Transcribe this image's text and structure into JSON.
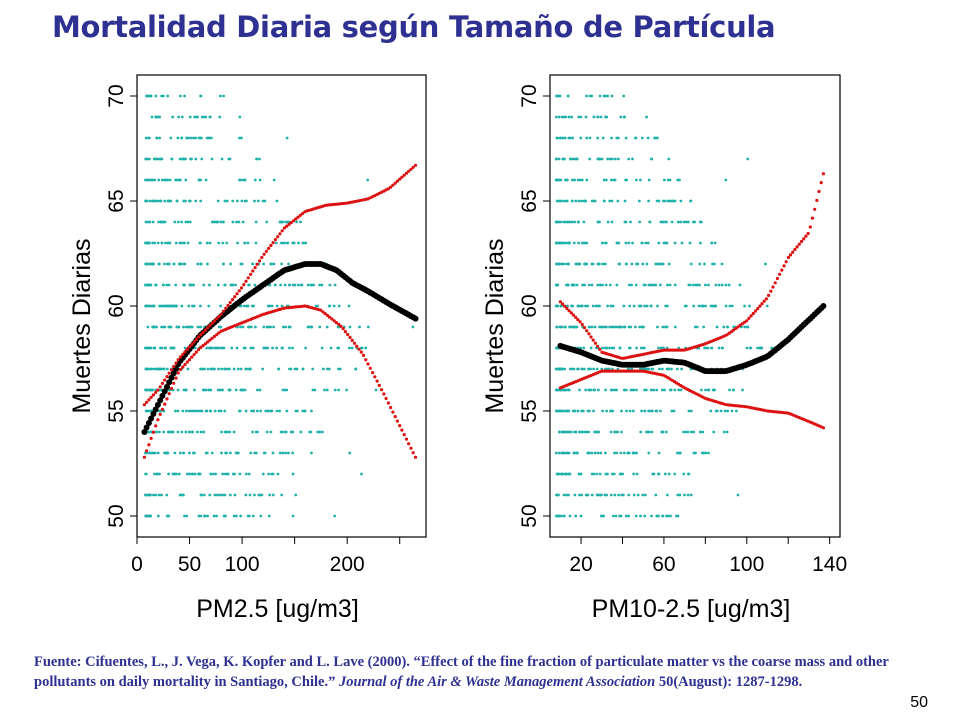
{
  "title": "Mortalidad Diaria según Tamaño de Partícula",
  "colors": {
    "title": "#2E3192",
    "points": "#20B2AA",
    "fit": "#000000",
    "ci": "#DD1111"
  },
  "chart_data": [
    {
      "type": "scatter",
      "xlabel": "PM2.5 [ug/m3]",
      "ylabel": "Muertes Diarias",
      "xlim": [
        0,
        275
      ],
      "ylim": [
        49,
        71
      ],
      "xticks": [
        0,
        50,
        100,
        150,
        200,
        250
      ],
      "xtick_labels": [
        "0",
        "50",
        "100",
        "",
        "200",
        ""
      ],
      "yticks": [
        50,
        55,
        60,
        65,
        70
      ],
      "scatter_x_range": [
        8,
        265
      ],
      "scatter_y_range": [
        50,
        70
      ],
      "series": [
        {
          "values": [
            [
              7,
              54.0
            ],
            [
              20,
              55.3
            ],
            [
              40,
              57.3
            ],
            [
              60,
              58.6
            ],
            [
              80,
              59.5
            ],
            [
              100,
              60.3
            ],
            [
              120,
              61.0
            ],
            [
              140,
              61.7
            ],
            [
              160,
              62.0
            ],
            [
              175,
              62.0
            ],
            [
              190,
              61.7
            ],
            [
              205,
              61.1
            ],
            [
              220,
              60.7
            ],
            [
              240,
              60.1
            ],
            [
              265,
              59.4
            ]
          ]
        },
        {
          "values": [
            [
              7,
              55.3
            ],
            [
              20,
              56.0
            ],
            [
              40,
              57.5
            ],
            [
              60,
              58.6
            ],
            [
              80,
              59.6
            ],
            [
              100,
              60.9
            ],
            [
              120,
              62.4
            ],
            [
              140,
              63.7
            ],
            [
              160,
              64.5
            ],
            [
              180,
              64.8
            ],
            [
              200,
              64.9
            ],
            [
              220,
              65.1
            ],
            [
              240,
              65.6
            ],
            [
              265,
              66.7
            ]
          ]
        },
        {
          "values": [
            [
              7,
              52.8
            ],
            [
              20,
              54.6
            ],
            [
              40,
              56.9
            ],
            [
              60,
              58.0
            ],
            [
              80,
              58.8
            ],
            [
              100,
              59.2
            ],
            [
              120,
              59.6
            ],
            [
              140,
              59.9
            ],
            [
              160,
              60.0
            ],
            [
              175,
              59.8
            ],
            [
              195,
              59.0
            ],
            [
              215,
              57.7
            ],
            [
              235,
              55.8
            ],
            [
              250,
              54.3
            ],
            [
              265,
              52.8
            ]
          ]
        }
      ]
    },
    {
      "type": "scatter",
      "xlabel": "PM10-2.5 [ug/m3]",
      "ylabel": "Muertes Diarias",
      "xlim": [
        5,
        145
      ],
      "ylim": [
        49,
        71
      ],
      "xticks": [
        20,
        40,
        60,
        80,
        100,
        120,
        140
      ],
      "xtick_labels": [
        "20",
        "",
        "60",
        "",
        "100",
        "",
        "140"
      ],
      "yticks": [
        50,
        55,
        60,
        65,
        70
      ],
      "scatter_x_range": [
        8,
        132
      ],
      "scatter_y_range": [
        50,
        70
      ],
      "series": [
        {
          "values": [
            [
              10,
              58.1
            ],
            [
              20,
              57.8
            ],
            [
              30,
              57.4
            ],
            [
              40,
              57.2
            ],
            [
              50,
              57.2
            ],
            [
              60,
              57.4
            ],
            [
              70,
              57.3
            ],
            [
              80,
              56.9
            ],
            [
              90,
              56.9
            ],
            [
              100,
              57.2
            ],
            [
              110,
              57.6
            ],
            [
              120,
              58.4
            ],
            [
              137,
              60.0
            ]
          ]
        },
        {
          "values": [
            [
              10,
              60.2
            ],
            [
              20,
              59.2
            ],
            [
              30,
              57.8
            ],
            [
              40,
              57.5
            ],
            [
              50,
              57.7
            ],
            [
              60,
              57.9
            ],
            [
              70,
              57.9
            ],
            [
              80,
              58.2
            ],
            [
              90,
              58.6
            ],
            [
              100,
              59.3
            ],
            [
              110,
              60.4
            ],
            [
              120,
              62.3
            ],
            [
              130,
              63.5
            ],
            [
              137,
              66.3
            ]
          ]
        },
        {
          "values": [
            [
              10,
              56.1
            ],
            [
              20,
              56.5
            ],
            [
              30,
              56.9
            ],
            [
              40,
              56.9
            ],
            [
              50,
              56.9
            ],
            [
              60,
              56.7
            ],
            [
              70,
              56.1
            ],
            [
              80,
              55.6
            ],
            [
              90,
              55.3
            ],
            [
              100,
              55.2
            ],
            [
              110,
              55.0
            ],
            [
              120,
              54.9
            ],
            [
              130,
              54.5
            ],
            [
              137,
              54.2
            ]
          ]
        }
      ]
    }
  ],
  "source": {
    "text_1": "Fuente: Cifuentes, L., J. Vega, K. Kopfer and L. Lave (2000). “Effect of the fine fraction of particulate matter vs the coarse mass and other pollutants on daily mortality in Santiago, Chile.” ",
    "journal": "Journal of the Air & Waste Management Association",
    "text_2": " 50(August): 1287-1298."
  },
  "page_number": "50"
}
